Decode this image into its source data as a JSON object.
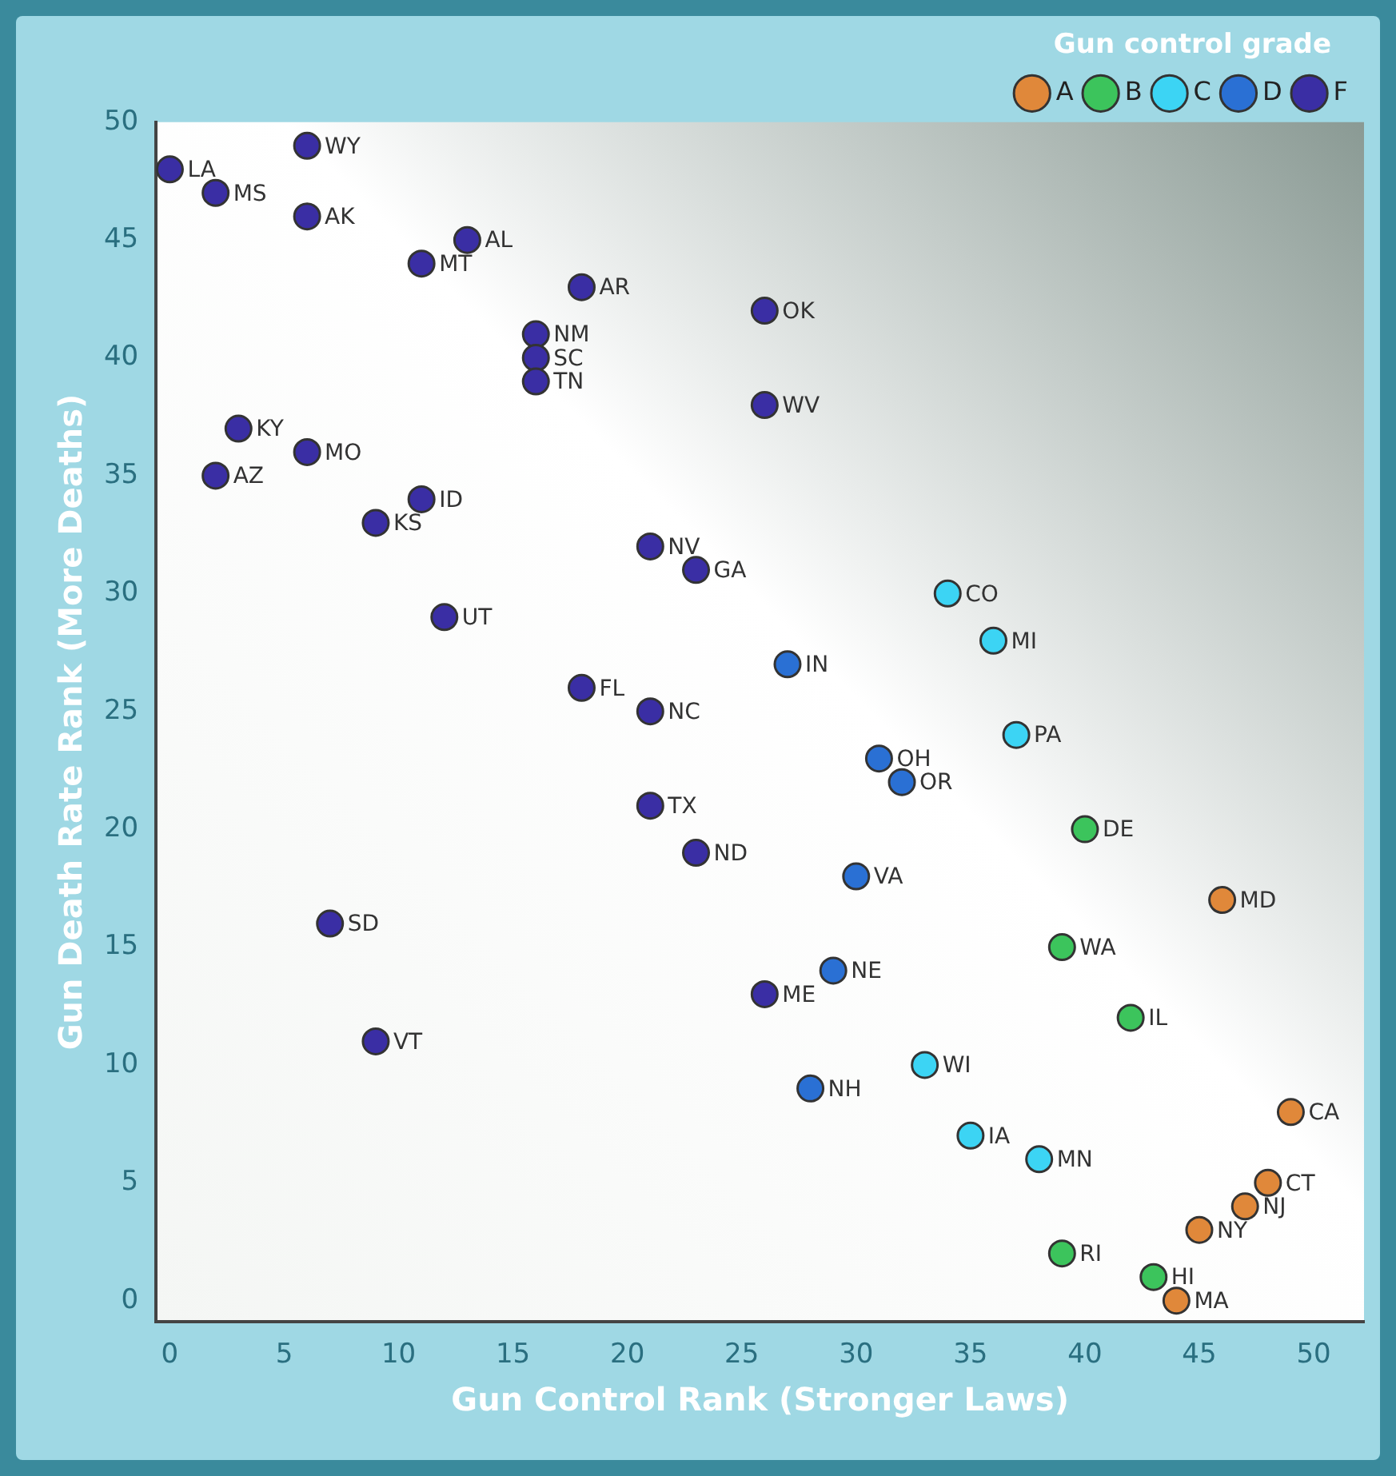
{
  "chart_data": {
    "type": "scatter",
    "xlabel": "Gun Control Rank (Stronger Laws)",
    "ylabel": "Gun Death Rate Rank (More Deaths)",
    "legend_title": "Gun control grade",
    "legend": "top right",
    "marker": "circle",
    "grid": false,
    "xlim": [
      -0.6,
      52.2
    ],
    "xticks": [
      0,
      5,
      10,
      15,
      20,
      25,
      30,
      35,
      40,
      45,
      50
    ],
    "ylim": [
      -0.9,
      50
    ],
    "yticks": [
      0,
      5,
      10,
      15,
      20,
      25,
      30,
      35,
      40,
      45,
      50
    ],
    "series": [
      {
        "name": "A",
        "color": "#e0883a",
        "x": [
          46,
          49,
          48,
          47,
          45,
          44
        ],
        "values": [
          17,
          8,
          5,
          4,
          3,
          0
        ],
        "value_labels": [
          "MD",
          "CA",
          "CT",
          "NJ",
          "NY",
          "MA"
        ]
      },
      {
        "name": "B",
        "color": "#3cc45c",
        "x": [
          40,
          39,
          42,
          39,
          43
        ],
        "values": [
          20,
          15,
          12,
          2,
          1
        ],
        "value_labels": [
          "DE",
          "WA",
          "IL",
          "RI",
          "HI"
        ]
      },
      {
        "name": "C",
        "color": "#3cd4f4",
        "x": [
          34,
          36,
          37,
          33,
          35,
          38
        ],
        "values": [
          30,
          28,
          24,
          10,
          7,
          6
        ],
        "value_labels": [
          "CO",
          "MI",
          "PA",
          "WI",
          "IA",
          "MN"
        ]
      },
      {
        "name": "D",
        "color": "#2a70d4",
        "x": [
          27,
          31,
          32,
          30,
          29,
          28
        ],
        "values": [
          27,
          23,
          22,
          18,
          14,
          9
        ],
        "value_labels": [
          "IN",
          "OH",
          "OR",
          "VA",
          "NE",
          "NH"
        ]
      },
      {
        "name": "F",
        "color": "#3a2ea4",
        "x": [
          0,
          2,
          6,
          6,
          13,
          11,
          18,
          26,
          16,
          16,
          16,
          26,
          3,
          6,
          2,
          11,
          9,
          21,
          23,
          12,
          18,
          21,
          21,
          23,
          7,
          26,
          9
        ],
        "values": [
          48,
          47,
          49,
          46,
          45,
          44,
          43,
          42,
          41,
          40,
          39,
          38,
          37,
          36,
          35,
          34,
          33,
          32,
          31,
          29,
          26,
          25,
          21,
          19,
          16,
          13,
          11
        ],
        "value_labels": [
          "LA",
          "MS",
          "WY",
          "AK",
          "AL",
          "MT",
          "AR",
          "OK",
          "NM",
          "SC",
          "TN",
          "WV",
          "KY",
          "MO",
          "AZ",
          "ID",
          "KS",
          "NV",
          "GA",
          "UT",
          "FL",
          "NC",
          "TX",
          "ND",
          "SD",
          "ME",
          "VT"
        ]
      }
    ]
  }
}
